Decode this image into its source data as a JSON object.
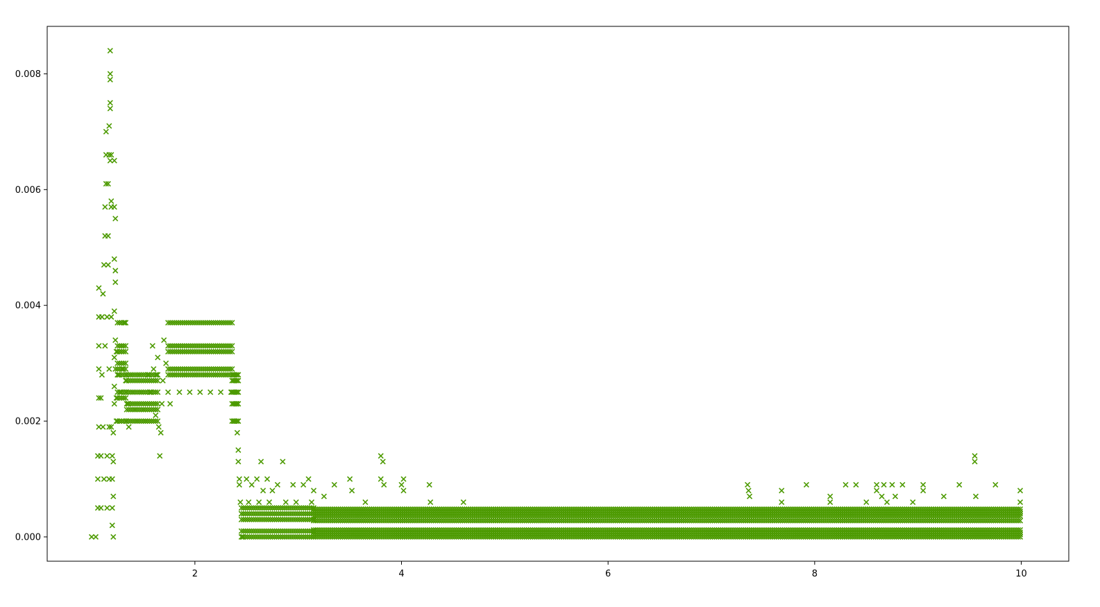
{
  "chart_data": {
    "type": "scatter",
    "title": "",
    "xlabel": "",
    "ylabel": "",
    "xlim": [
      0.57,
      10.46
    ],
    "ylim": [
      -0.00042,
      0.00882
    ],
    "grid": false,
    "legend": "none",
    "marker": "x",
    "color": "#4c9a00",
    "x_ticks": [
      {
        "value": 2,
        "label": "2"
      },
      {
        "value": 4,
        "label": "4"
      },
      {
        "value": 6,
        "label": "6"
      },
      {
        "value": 8,
        "label": "8"
      },
      {
        "value": 10,
        "label": "10"
      }
    ],
    "y_ticks": [
      {
        "value": 0.0,
        "label": "0.000"
      },
      {
        "value": 0.002,
        "label": "0.002"
      },
      {
        "value": 0.004,
        "label": "0.004"
      },
      {
        "value": 0.006,
        "label": "0.006"
      },
      {
        "value": 0.008,
        "label": "0.008"
      }
    ],
    "series": [
      {
        "points": [
          [
            1.0,
            0.0
          ],
          [
            1.04,
            0.0
          ],
          [
            1.06,
            0.0005
          ],
          [
            1.06,
            0.001
          ],
          [
            1.06,
            0.0014
          ],
          [
            1.07,
            0.0019
          ],
          [
            1.07,
            0.0024
          ],
          [
            1.07,
            0.0029
          ],
          [
            1.07,
            0.0033
          ],
          [
            1.07,
            0.0038
          ],
          [
            1.07,
            0.0043
          ],
          [
            1.09,
            0.0005
          ],
          [
            1.09,
            0.0014
          ],
          [
            1.09,
            0.0024
          ],
          [
            1.1,
            0.0028
          ],
          [
            1.1,
            0.0038
          ],
          [
            1.11,
            0.0042
          ],
          [
            1.11,
            0.0019
          ],
          [
            1.12,
            0.001
          ],
          [
            1.12,
            0.0047
          ],
          [
            1.13,
            0.0033
          ],
          [
            1.13,
            0.0052
          ],
          [
            1.13,
            0.0057
          ],
          [
            1.14,
            0.0061
          ],
          [
            1.14,
            0.0066
          ],
          [
            1.14,
            0.007
          ],
          [
            1.15,
            0.0014
          ],
          [
            1.15,
            0.0005
          ],
          [
            1.15,
            0.0038
          ],
          [
            1.16,
            0.0047
          ],
          [
            1.16,
            0.0052
          ],
          [
            1.16,
            0.0061
          ],
          [
            1.17,
            0.0071
          ],
          [
            1.17,
            0.0066
          ],
          [
            1.17,
            0.0029
          ],
          [
            1.17,
            0.0019
          ],
          [
            1.17,
            0.001
          ],
          [
            1.18,
            0.0075
          ],
          [
            1.18,
            0.0079
          ],
          [
            1.18,
            0.008
          ],
          [
            1.18,
            0.0084
          ],
          [
            1.18,
            0.0074
          ],
          [
            1.18,
            0.0065
          ],
          [
            1.19,
            0.0058
          ],
          [
            1.19,
            0.0057
          ],
          [
            1.19,
            0.0066
          ],
          [
            1.19,
            0.0038
          ],
          [
            1.19,
            0.0019
          ],
          [
            1.2,
            0.001
          ],
          [
            1.2,
            0.0005
          ],
          [
            1.2,
            0.0014
          ],
          [
            1.2,
            0.0002
          ],
          [
            1.21,
            0.0
          ],
          [
            1.21,
            0.0007
          ],
          [
            1.21,
            0.0013
          ],
          [
            1.21,
            0.0018
          ],
          [
            1.22,
            0.0065
          ],
          [
            1.22,
            0.0057
          ],
          [
            1.22,
            0.0048
          ],
          [
            1.22,
            0.0039
          ],
          [
            1.22,
            0.0031
          ],
          [
            1.22,
            0.0026
          ],
          [
            1.22,
            0.0023
          ],
          [
            1.23,
            0.0055
          ],
          [
            1.23,
            0.0046
          ],
          [
            1.23,
            0.0044
          ],
          [
            1.23,
            0.0034
          ],
          [
            1.23,
            0.0029
          ],
          [
            1.24,
            0.0032
          ],
          [
            1.24,
            0.0024
          ],
          [
            1.24,
            0.002
          ],
          [
            1.26,
            0.0028
          ],
          [
            1.27,
            0.0032
          ],
          [
            1.27,
            0.002
          ],
          [
            1.28,
            0.0025
          ],
          [
            1.29,
            0.0037
          ],
          [
            1.29,
            0.0033
          ],
          [
            1.3,
            0.0029
          ],
          [
            1.31,
            0.0024
          ],
          [
            1.32,
            0.0037
          ],
          [
            1.33,
            0.0027
          ],
          [
            1.35,
            0.0023
          ],
          [
            1.36,
            0.0019
          ],
          [
            1.38,
            0.0028
          ],
          [
            1.4,
            0.0025
          ],
          [
            1.42,
            0.0022
          ],
          [
            1.44,
            0.002
          ],
          [
            1.46,
            0.0028
          ],
          [
            1.48,
            0.0025
          ],
          [
            1.5,
            0.0022
          ],
          [
            1.52,
            0.002
          ],
          [
            1.55,
            0.0028
          ],
          [
            1.57,
            0.0025
          ],
          [
            1.59,
            0.0033
          ],
          [
            1.6,
            0.0029
          ],
          [
            1.62,
            0.0021
          ],
          [
            1.63,
            0.0028
          ],
          [
            1.64,
            0.0031
          ],
          [
            1.65,
            0.0019
          ],
          [
            1.66,
            0.0014
          ],
          [
            1.67,
            0.0018
          ],
          [
            1.68,
            0.0023
          ],
          [
            1.69,
            0.0027
          ],
          [
            1.7,
            0.0034
          ],
          [
            1.72,
            0.003
          ],
          [
            1.74,
            0.0025
          ],
          [
            1.76,
            0.0023
          ],
          [
            1.8,
            0.0028
          ],
          [
            1.85,
            0.0025
          ],
          [
            1.9,
            0.0028
          ],
          [
            1.95,
            0.0025
          ],
          [
            2.0,
            0.0028
          ],
          [
            2.05,
            0.0025
          ],
          [
            2.1,
            0.0028
          ],
          [
            2.15,
            0.0025
          ],
          [
            2.2,
            0.0028
          ],
          [
            2.25,
            0.0025
          ],
          [
            2.3,
            0.0028
          ],
          [
            2.35,
            0.0025
          ],
          [
            2.37,
            0.0028
          ],
          [
            2.38,
            0.002
          ],
          [
            2.4,
            0.0023
          ],
          [
            2.41,
            0.0018
          ],
          [
            2.42,
            0.0015
          ],
          [
            2.42,
            0.0013
          ],
          [
            2.43,
            0.001
          ],
          [
            2.43,
            0.0009
          ],
          [
            2.44,
            0.0006
          ],
          [
            2.45,
            0.0004
          ],
          [
            2.46,
            0.0
          ],
          [
            2.5,
            0.001
          ],
          [
            2.52,
            0.0006
          ],
          [
            2.55,
            0.0009
          ],
          [
            2.6,
            0.001
          ],
          [
            2.62,
            0.0006
          ],
          [
            2.64,
            0.0013
          ],
          [
            2.66,
            0.0008
          ],
          [
            2.7,
            0.001
          ],
          [
            2.72,
            0.0006
          ],
          [
            2.75,
            0.0008
          ],
          [
            2.8,
            0.0009
          ],
          [
            2.85,
            0.0013
          ],
          [
            2.88,
            0.0006
          ],
          [
            2.95,
            0.0009
          ],
          [
            2.98,
            0.0006
          ],
          [
            3.05,
            0.0009
          ],
          [
            3.1,
            0.001
          ],
          [
            3.13,
            0.0006
          ],
          [
            3.15,
            0.0008
          ],
          [
            3.25,
            0.0007
          ],
          [
            3.35,
            0.0009
          ],
          [
            3.5,
            0.001
          ],
          [
            3.52,
            0.0008
          ],
          [
            3.65,
            0.0006
          ],
          [
            3.8,
            0.0014
          ],
          [
            3.82,
            0.0013
          ],
          [
            3.8,
            0.001
          ],
          [
            3.83,
            0.0009
          ],
          [
            4.0,
            0.0009
          ],
          [
            4.02,
            0.001
          ],
          [
            4.02,
            0.0008
          ],
          [
            4.27,
            0.0009
          ],
          [
            4.28,
            0.0006
          ],
          [
            4.6,
            0.0006
          ],
          [
            7.35,
            0.0009
          ],
          [
            7.36,
            0.0008
          ],
          [
            7.37,
            0.0007
          ],
          [
            7.68,
            0.0008
          ],
          [
            7.68,
            0.0006
          ],
          [
            7.92,
            0.0009
          ],
          [
            8.15,
            0.0006
          ],
          [
            8.15,
            0.0007
          ],
          [
            8.3,
            0.0009
          ],
          [
            8.4,
            0.0009
          ],
          [
            8.5,
            0.0006
          ],
          [
            8.6,
            0.0009
          ],
          [
            8.6,
            0.0008
          ],
          [
            8.65,
            0.0007
          ],
          [
            8.67,
            0.0009
          ],
          [
            8.7,
            0.0006
          ],
          [
            8.75,
            0.0009
          ],
          [
            8.78,
            0.0007
          ],
          [
            8.85,
            0.0009
          ],
          [
            8.95,
            0.0006
          ],
          [
            9.05,
            0.0009
          ],
          [
            9.05,
            0.0008
          ],
          [
            9.25,
            0.0007
          ],
          [
            9.4,
            0.0009
          ],
          [
            9.55,
            0.0014
          ],
          [
            9.55,
            0.0013
          ],
          [
            9.56,
            0.0007
          ],
          [
            9.75,
            0.0009
          ],
          [
            9.99,
            0.0008
          ],
          [
            9.99,
            0.0006
          ]
        ],
        "bands": [
          {
            "x_start": 1.25,
            "x_end": 1.34,
            "y": [
              0.0037,
              0.0033,
              0.0032,
              0.003,
              0.0029,
              0.0028,
              0.0025,
              0.0024,
              0.002
            ],
            "step": 0.02
          },
          {
            "x_start": 1.34,
            "x_end": 1.65,
            "y": [
              0.0028,
              0.0027,
              0.0025,
              0.0023,
              0.0022,
              0.002
            ],
            "step": 0.02
          },
          {
            "x_start": 1.74,
            "x_end": 2.36,
            "y": [
              0.0037,
              0.0033,
              0.0032,
              0.0029,
              0.0028
            ],
            "step": 0.02
          },
          {
            "x_start": 2.36,
            "x_end": 2.42,
            "y": [
              0.0028,
              0.0027,
              0.0025,
              0.0023,
              0.002
            ],
            "step": 0.015
          },
          {
            "x_start": 2.45,
            "x_end": 3.15,
            "y": [
              0.0005,
              0.0004,
              0.0003,
              0.0001,
              0.0
            ],
            "step": 0.02
          },
          {
            "x_start": 3.15,
            "x_end": 10.0,
            "y": [
              0.00048,
              0.00044,
              0.0004,
              0.00036,
              0.00028,
              0.00012,
              8e-05,
              4e-05,
              0.0
            ],
            "step": 0.02
          }
        ]
      }
    ]
  }
}
